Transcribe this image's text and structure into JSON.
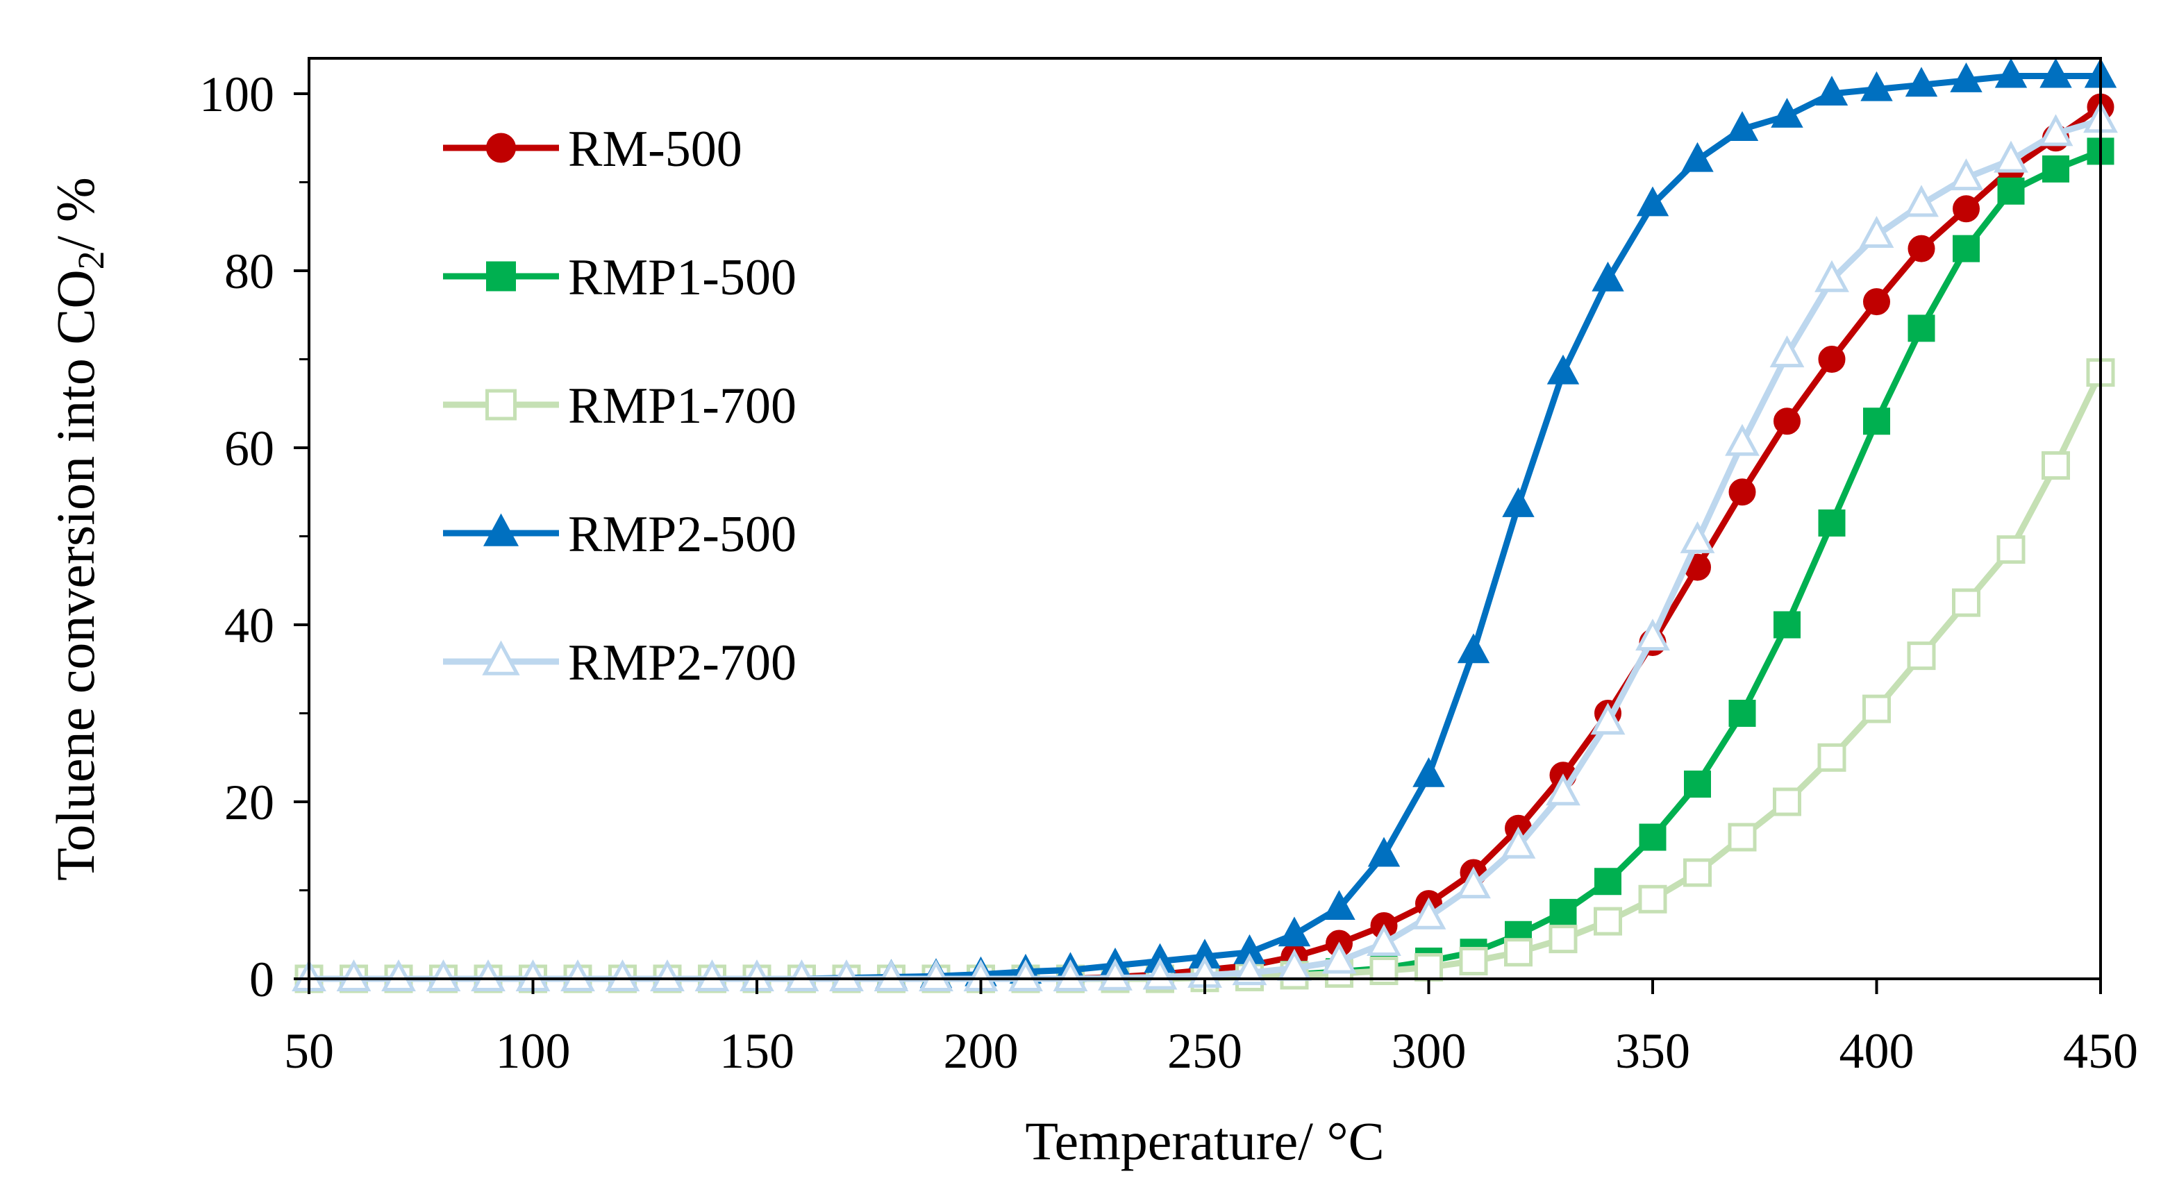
{
  "chart_data": {
    "type": "line",
    "title": "",
    "xlabel": "Temperature/ °C",
    "ylabel_main": "Toluene conversion into CO",
    "ylabel_sub": "2",
    "ylabel_tail": "/ %",
    "xlim": [
      50,
      450
    ],
    "ylim": [
      0,
      104
    ],
    "xticks": [
      50,
      100,
      150,
      200,
      250,
      300,
      350,
      400,
      450
    ],
    "yticks": [
      0,
      20,
      40,
      60,
      80,
      100
    ],
    "yminor": [
      10,
      30,
      50,
      70,
      90
    ],
    "grid": false,
    "legend_position": "top-left",
    "series": [
      {
        "name": "RM-500",
        "color": "#C00000",
        "marker": "circle",
        "filled": true,
        "x": [
          50,
          60,
          70,
          80,
          90,
          100,
          110,
          120,
          130,
          140,
          150,
          160,
          170,
          180,
          190,
          200,
          210,
          220,
          230,
          240,
          250,
          260,
          270,
          280,
          290,
          300,
          310,
          320,
          330,
          340,
          350,
          360,
          370,
          380,
          390,
          400,
          410,
          420,
          430,
          440,
          450
        ],
        "y": [
          0,
          0,
          0,
          0,
          0,
          0,
          0,
          0,
          0,
          0,
          0,
          0,
          0,
          0,
          0,
          0,
          0,
          0,
          0.2,
          0.5,
          1,
          1.5,
          2.5,
          4,
          6,
          8.5,
          12,
          17,
          23,
          30,
          38,
          46.5,
          55,
          63,
          70,
          76.5,
          82.5,
          87,
          91.5,
          95,
          98.5
        ]
      },
      {
        "name": "RMP1-500",
        "color": "#00B050",
        "marker": "square",
        "filled": true,
        "x": [
          50,
          60,
          70,
          80,
          90,
          100,
          110,
          120,
          130,
          140,
          150,
          160,
          170,
          180,
          190,
          200,
          210,
          220,
          230,
          240,
          250,
          260,
          270,
          280,
          290,
          300,
          310,
          320,
          330,
          340,
          350,
          360,
          370,
          380,
          390,
          400,
          410,
          420,
          430,
          440,
          450
        ],
        "y": [
          0,
          0,
          0,
          0,
          0,
          0,
          0,
          0,
          0,
          0,
          0,
          0,
          0,
          0,
          0,
          0,
          0,
          0,
          0,
          0,
          0.2,
          0.3,
          0.5,
          0.8,
          1.2,
          2,
          3,
          5,
          7.5,
          11,
          16,
          22,
          30,
          40,
          51.5,
          63,
          73.5,
          82.5,
          89,
          91.5,
          93.5
        ]
      },
      {
        "name": "RMP1-700",
        "color": "#C5E0B4",
        "marker": "square",
        "filled": false,
        "x": [
          50,
          60,
          70,
          80,
          90,
          100,
          110,
          120,
          130,
          140,
          150,
          160,
          170,
          180,
          190,
          200,
          210,
          220,
          230,
          240,
          250,
          260,
          270,
          280,
          290,
          300,
          310,
          320,
          330,
          340,
          350,
          360,
          370,
          380,
          390,
          400,
          410,
          420,
          430,
          440,
          450
        ],
        "y": [
          0,
          0,
          0,
          0,
          0,
          0,
          0,
          0,
          0,
          0,
          0,
          0,
          0,
          0,
          0,
          0,
          0,
          0,
          0,
          0,
          0.1,
          0.2,
          0.4,
          0.6,
          0.9,
          1.3,
          2,
          3,
          4.5,
          6.5,
          9,
          12,
          16,
          20,
          25,
          30.5,
          36.5,
          42.5,
          48.5,
          58,
          68.5
        ]
      },
      {
        "name": "RMP2-500",
        "color": "#0070C0",
        "marker": "triangle",
        "filled": true,
        "x": [
          50,
          60,
          70,
          80,
          90,
          100,
          110,
          120,
          130,
          140,
          150,
          160,
          170,
          180,
          190,
          200,
          210,
          220,
          230,
          240,
          250,
          260,
          270,
          280,
          290,
          300,
          310,
          320,
          330,
          340,
          350,
          360,
          370,
          380,
          390,
          400,
          410,
          420,
          430,
          440,
          450
        ],
        "y": [
          0,
          0,
          0,
          0,
          0,
          0,
          0,
          0,
          0,
          0,
          0,
          0,
          0.1,
          0.2,
          0.3,
          0.5,
          0.8,
          1,
          1.5,
          2,
          2.5,
          3,
          5,
          8,
          14,
          23,
          37,
          53.5,
          68.5,
          79,
          87.5,
          92.5,
          96,
          97.5,
          100,
          100.5,
          101,
          101.5,
          102,
          102,
          102
        ]
      },
      {
        "name": "RMP2-700",
        "color": "#BDD7EE",
        "marker": "triangle",
        "filled": false,
        "x": [
          50,
          60,
          70,
          80,
          90,
          100,
          110,
          120,
          130,
          140,
          150,
          160,
          170,
          180,
          190,
          200,
          210,
          220,
          230,
          240,
          250,
          260,
          270,
          280,
          290,
          300,
          310,
          320,
          330,
          340,
          350,
          360,
          370,
          380,
          390,
          400,
          410,
          420,
          430,
          440,
          450
        ],
        "y": [
          0,
          0,
          0,
          0,
          0,
          0,
          0,
          0,
          0,
          0,
          0,
          0,
          0,
          0,
          0,
          0,
          0,
          0,
          0.1,
          0.2,
          0.4,
          0.7,
          1.2,
          2,
          4,
          7,
          10.5,
          15,
          21,
          29,
          38.5,
          49.5,
          60.5,
          70.5,
          79,
          84,
          87.5,
          90.5,
          92.5,
          95.5,
          97
        ]
      }
    ]
  }
}
